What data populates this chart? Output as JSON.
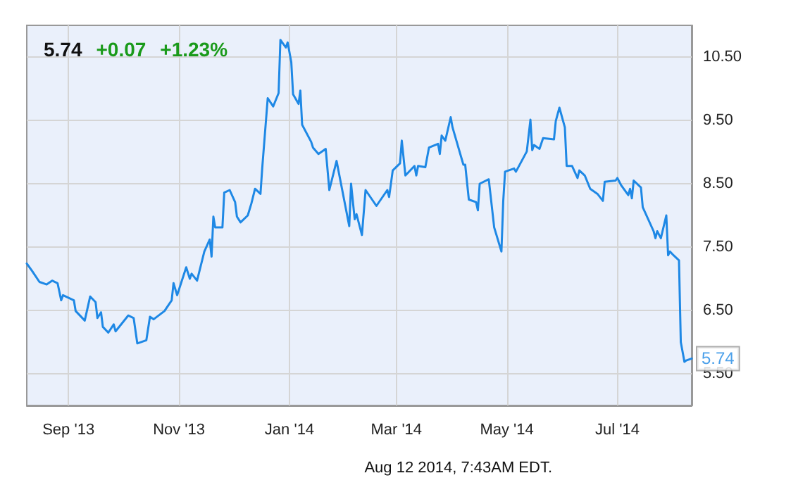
{
  "chart_data": {
    "type": "line",
    "title": "5.74",
    "annotations": [
      "+0.07",
      "+1.23%",
      "Aug 12 2014, 7:43AM EDT.",
      {
        "text": "5.74",
        "x": "2014-08-11",
        "y": 5.74
      }
    ],
    "x": [
      "2013-08-09",
      "2013-08-12",
      "2013-08-16",
      "2013-08-20",
      "2013-08-23",
      "2013-08-26",
      "2013-08-28",
      "2013-08-29",
      "2013-09-04",
      "2013-09-05",
      "2013-09-10",
      "2013-09-13",
      "2013-09-16",
      "2013-09-17",
      "2013-09-19",
      "2013-09-20",
      "2013-09-23",
      "2013-09-26",
      "2013-09-27",
      "2013-10-04",
      "2013-10-07",
      "2013-10-09",
      "2013-10-14",
      "2013-10-16",
      "2013-10-18",
      "2013-10-24",
      "2013-10-28",
      "2013-10-29",
      "2013-10-31",
      "2013-11-05",
      "2013-11-07",
      "2013-11-08",
      "2013-11-11",
      "2013-11-15",
      "2013-11-18",
      "2013-11-19",
      "2013-11-20",
      "2013-11-21",
      "2013-11-25",
      "2013-11-26",
      "2013-11-29",
      "2013-12-02",
      "2013-12-03",
      "2013-12-05",
      "2013-12-09",
      "2013-12-11",
      "2013-12-13",
      "2013-12-16",
      "2013-12-17",
      "2013-12-20",
      "2013-12-23",
      "2013-12-26",
      "2013-12-27",
      "2013-12-30",
      "2013-12-31",
      "2014-01-02",
      "2014-01-03",
      "2014-01-06",
      "2014-01-07",
      "2014-01-08",
      "2014-01-13",
      "2014-01-14",
      "2014-01-17",
      "2014-01-21",
      "2014-01-23",
      "2014-01-27",
      "2014-02-03",
      "2014-02-04",
      "2014-02-06",
      "2014-02-07",
      "2014-02-10",
      "2014-02-12",
      "2014-02-18",
      "2014-02-24",
      "2014-02-25",
      "2014-02-27",
      "2014-03-03",
      "2014-03-04",
      "2014-03-06",
      "2014-03-11",
      "2014-03-12",
      "2014-03-13",
      "2014-03-17",
      "2014-03-19",
      "2014-03-24",
      "2014-03-25",
      "2014-03-26",
      "2014-03-28",
      "2014-03-31",
      "2014-04-01",
      "2014-04-07",
      "2014-04-08",
      "2014-04-10",
      "2014-04-14",
      "2014-04-15",
      "2014-04-16",
      "2014-04-21",
      "2014-04-24",
      "2014-04-28",
      "2014-04-29",
      "2014-04-30",
      "2014-05-05",
      "2014-05-06",
      "2014-05-12",
      "2014-05-14",
      "2014-05-15",
      "2014-05-16",
      "2014-05-19",
      "2014-05-21",
      "2014-05-27",
      "2014-05-28",
      "2014-05-30",
      "2014-06-02",
      "2014-06-03",
      "2014-06-06",
      "2014-06-09",
      "2014-06-10",
      "2014-06-13",
      "2014-06-16",
      "2014-06-20",
      "2014-06-23",
      "2014-06-24",
      "2014-06-30",
      "2014-07-01",
      "2014-07-03",
      "2014-07-07",
      "2014-07-08",
      "2014-07-09",
      "2014-07-10",
      "2014-07-14",
      "2014-07-15",
      "2014-07-21",
      "2014-07-22",
      "2014-07-23",
      "2014-07-25",
      "2014-07-28",
      "2014-07-29",
      "2014-07-30",
      "2014-08-01",
      "2014-08-04",
      "2014-08-05",
      "2014-08-07",
      "2014-08-08",
      "2014-08-11"
    ],
    "series": [
      {
        "color": "#1e88e5",
        "values": [
          7.24,
          7.12,
          6.95,
          6.91,
          6.97,
          6.93,
          6.66,
          6.74,
          6.66,
          6.49,
          6.34,
          6.72,
          6.63,
          6.38,
          6.47,
          6.24,
          6.15,
          6.28,
          6.17,
          6.42,
          6.38,
          5.98,
          6.03,
          6.4,
          6.36,
          6.49,
          6.66,
          6.93,
          6.74,
          7.18,
          7.0,
          7.08,
          6.97,
          7.43,
          7.62,
          7.35,
          7.98,
          7.81,
          7.81,
          8.36,
          8.4,
          8.21,
          7.98,
          7.89,
          8.0,
          8.19,
          8.42,
          8.34,
          8.76,
          9.85,
          9.72,
          9.93,
          10.77,
          10.65,
          10.73,
          10.42,
          9.91,
          9.76,
          9.97,
          9.43,
          9.16,
          9.07,
          8.97,
          9.05,
          8.4,
          8.86,
          7.83,
          8.5,
          7.94,
          8.02,
          7.69,
          8.4,
          8.15,
          8.4,
          8.29,
          8.71,
          8.82,
          9.18,
          8.63,
          8.78,
          8.63,
          8.78,
          8.76,
          9.07,
          9.13,
          8.97,
          9.26,
          9.18,
          9.55,
          9.39,
          8.8,
          8.8,
          8.25,
          8.21,
          8.08,
          8.5,
          8.57,
          7.81,
          7.43,
          8.23,
          8.69,
          8.74,
          8.69,
          9.01,
          9.51,
          9.03,
          9.11,
          9.05,
          9.22,
          9.2,
          9.49,
          9.7,
          9.39,
          8.78,
          8.78,
          8.59,
          8.71,
          8.63,
          8.42,
          8.34,
          8.23,
          8.53,
          8.55,
          8.59,
          8.48,
          8.32,
          8.42,
          8.27,
          8.55,
          8.44,
          8.13,
          7.75,
          7.64,
          7.75,
          7.64,
          8.0,
          7.37,
          7.43,
          7.37,
          7.29,
          6.0,
          5.69,
          5.71,
          5.74
        ]
      }
    ],
    "xlim": [
      "2013-08-09",
      "2014-08-11"
    ],
    "xticks": [
      {
        "value": "2013-09-01",
        "label": "Sep '13"
      },
      {
        "value": "2013-11-01",
        "label": "Nov '13"
      },
      {
        "value": "2014-01-01",
        "label": "Jan '14"
      },
      {
        "value": "2014-03-01",
        "label": "Mar '14"
      },
      {
        "value": "2014-05-01",
        "label": "May '14"
      },
      {
        "value": "2014-07-01",
        "label": "Jul '14"
      }
    ],
    "ylim": [
      5.0,
      11.0
    ],
    "yticks": [
      {
        "value": 5.5,
        "label": "5.50"
      },
      {
        "value": 6.5,
        "label": "6.50"
      },
      {
        "value": 7.5,
        "label": "7.50"
      },
      {
        "value": 8.5,
        "label": "8.50"
      },
      {
        "value": 9.5,
        "label": "9.50"
      },
      {
        "value": 10.5,
        "label": "10.50"
      }
    ],
    "grid": true,
    "marker": "none",
    "line_style": "solid"
  }
}
